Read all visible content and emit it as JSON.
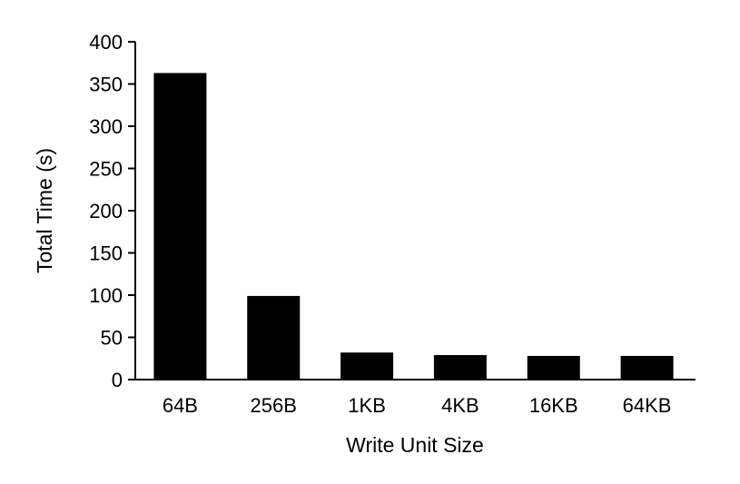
{
  "chart_data": {
    "type": "bar",
    "title": "",
    "xlabel": "Write Unit Size",
    "ylabel": "Total Time (s)",
    "categories": [
      "64B",
      "256B",
      "1KB",
      "4KB",
      "16KB",
      "64KB"
    ],
    "values": [
      363,
      99,
      32,
      29,
      28,
      28
    ],
    "ylim": [
      0,
      400
    ],
    "yticks": [
      0,
      50,
      100,
      150,
      200,
      250,
      300,
      350,
      400
    ],
    "grid": false,
    "legend": "none",
    "bar_color": "#000000",
    "axis_color": "#000000"
  }
}
